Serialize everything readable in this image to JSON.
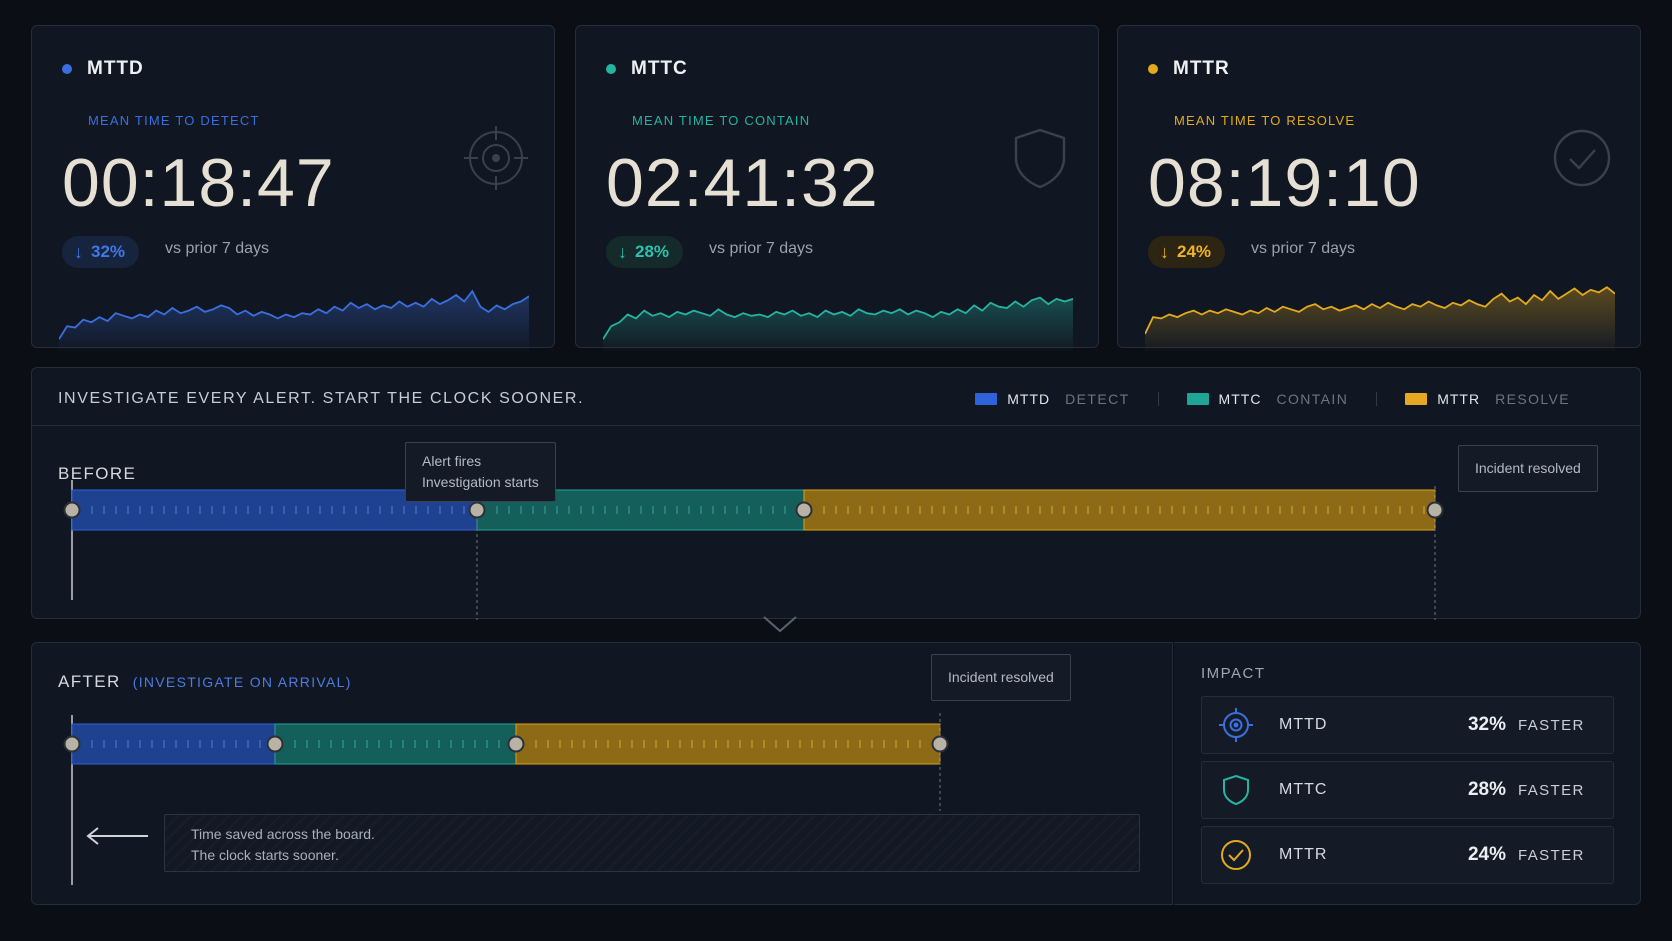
{
  "colors": {
    "detect": "#2f62d8",
    "contain": "#1fa596",
    "resolve": "#e4a920"
  },
  "kpis": [
    {
      "abbr": "MTTD",
      "full": "MEAN TIME TO DETECT",
      "time": "00:18:47",
      "delta": "32%",
      "delta_note": "vs prior 7 days",
      "icon": "target-icon",
      "color": "#3a6fe0",
      "spark": [
        0.12,
        0.32,
        0.3,
        0.42,
        0.38,
        0.46,
        0.4,
        0.52,
        0.48,
        0.44,
        0.5,
        0.46,
        0.56,
        0.5,
        0.6,
        0.52,
        0.56,
        0.62,
        0.54,
        0.58,
        0.64,
        0.6,
        0.5,
        0.56,
        0.48,
        0.54,
        0.5,
        0.44,
        0.5,
        0.46,
        0.52,
        0.5,
        0.58,
        0.52,
        0.62,
        0.56,
        0.68,
        0.6,
        0.66,
        0.58,
        0.64,
        0.6,
        0.7,
        0.62,
        0.68,
        0.62,
        0.74,
        0.66,
        0.72,
        0.8,
        0.7,
        0.86,
        0.62,
        0.54,
        0.64,
        0.58,
        0.66,
        0.7,
        0.78
      ]
    },
    {
      "abbr": "MTTC",
      "full": "MEAN TIME TO CONTAIN",
      "time": "02:41:32",
      "delta": "28%",
      "delta_note": "vs prior 7 days",
      "icon": "shield-icon",
      "color": "#26b3a2",
      "spark": [
        0.12,
        0.32,
        0.38,
        0.5,
        0.44,
        0.56,
        0.48,
        0.52,
        0.46,
        0.54,
        0.5,
        0.56,
        0.52,
        0.48,
        0.58,
        0.5,
        0.46,
        0.52,
        0.48,
        0.5,
        0.46,
        0.54,
        0.5,
        0.56,
        0.48,
        0.52,
        0.46,
        0.56,
        0.5,
        0.54,
        0.48,
        0.58,
        0.52,
        0.5,
        0.56,
        0.52,
        0.58,
        0.5,
        0.56,
        0.52,
        0.46,
        0.54,
        0.5,
        0.58,
        0.52,
        0.64,
        0.56,
        0.68,
        0.62,
        0.6,
        0.7,
        0.62,
        0.72,
        0.76,
        0.66,
        0.74,
        0.7,
        0.74
      ]
    },
    {
      "abbr": "MTTR",
      "full": "MEAN TIME TO RESOLVE",
      "time": "08:19:10",
      "delta": "24%",
      "delta_note": "vs prior 7 days",
      "icon": "check-circle-icon",
      "color": "#e4aa1e",
      "spark": [
        0.2,
        0.46,
        0.44,
        0.5,
        0.46,
        0.52,
        0.56,
        0.5,
        0.56,
        0.52,
        0.58,
        0.54,
        0.5,
        0.56,
        0.52,
        0.6,
        0.54,
        0.62,
        0.58,
        0.54,
        0.62,
        0.66,
        0.58,
        0.62,
        0.56,
        0.6,
        0.64,
        0.58,
        0.66,
        0.6,
        0.68,
        0.62,
        0.58,
        0.66,
        0.62,
        0.7,
        0.64,
        0.6,
        0.68,
        0.64,
        0.72,
        0.66,
        0.62,
        0.74,
        0.82,
        0.7,
        0.76,
        0.66,
        0.8,
        0.72,
        0.86,
        0.74,
        0.82,
        0.9,
        0.8,
        0.88,
        0.84,
        0.92,
        0.82
      ]
    }
  ],
  "headline": "INVESTIGATE EVERY ALERT. START THE CLOCK SOONER.",
  "legend": [
    {
      "abbr": "MTTD",
      "word": "DETECT",
      "color": "#2f62d8"
    },
    {
      "abbr": "MTTC",
      "word": "CONTAIN",
      "color": "#1fa596"
    },
    {
      "abbr": "MTTR",
      "word": "RESOLVE",
      "color": "#e4a920"
    }
  ],
  "before": {
    "label": "BEFORE",
    "callout_start_line1": "Alert fires",
    "callout_start_line2": "Investigation starts",
    "callout_end": "Incident resolved",
    "segments": [
      {
        "stage": "detect",
        "length": 405
      },
      {
        "stage": "contain",
        "length": 327
      },
      {
        "stage": "resolve",
        "length": 631
      }
    ]
  },
  "after": {
    "label": "AFTER",
    "sublabel": "(INVESTIGATE ON ARRIVAL)",
    "callout_end": "Incident resolved",
    "saved_line1": "Time saved across the board.",
    "saved_line2": "The clock starts sooner.",
    "segments": [
      {
        "stage": "detect",
        "length": 203
      },
      {
        "stage": "contain",
        "length": 241
      },
      {
        "stage": "resolve",
        "length": 424
      }
    ]
  },
  "impact": {
    "title": "IMPACT",
    "rows": [
      {
        "name": "MTTD",
        "pct": "32%",
        "word": "FASTER",
        "icon": "target-icon",
        "color": "#3a6fe0"
      },
      {
        "name": "MTTC",
        "pct": "28%",
        "word": "FASTER",
        "icon": "shield-icon",
        "color": "#26b3a2"
      },
      {
        "name": "MTTR",
        "pct": "24%",
        "word": "FASTER",
        "icon": "check-circle-icon",
        "color": "#e4aa1e"
      }
    ]
  }
}
